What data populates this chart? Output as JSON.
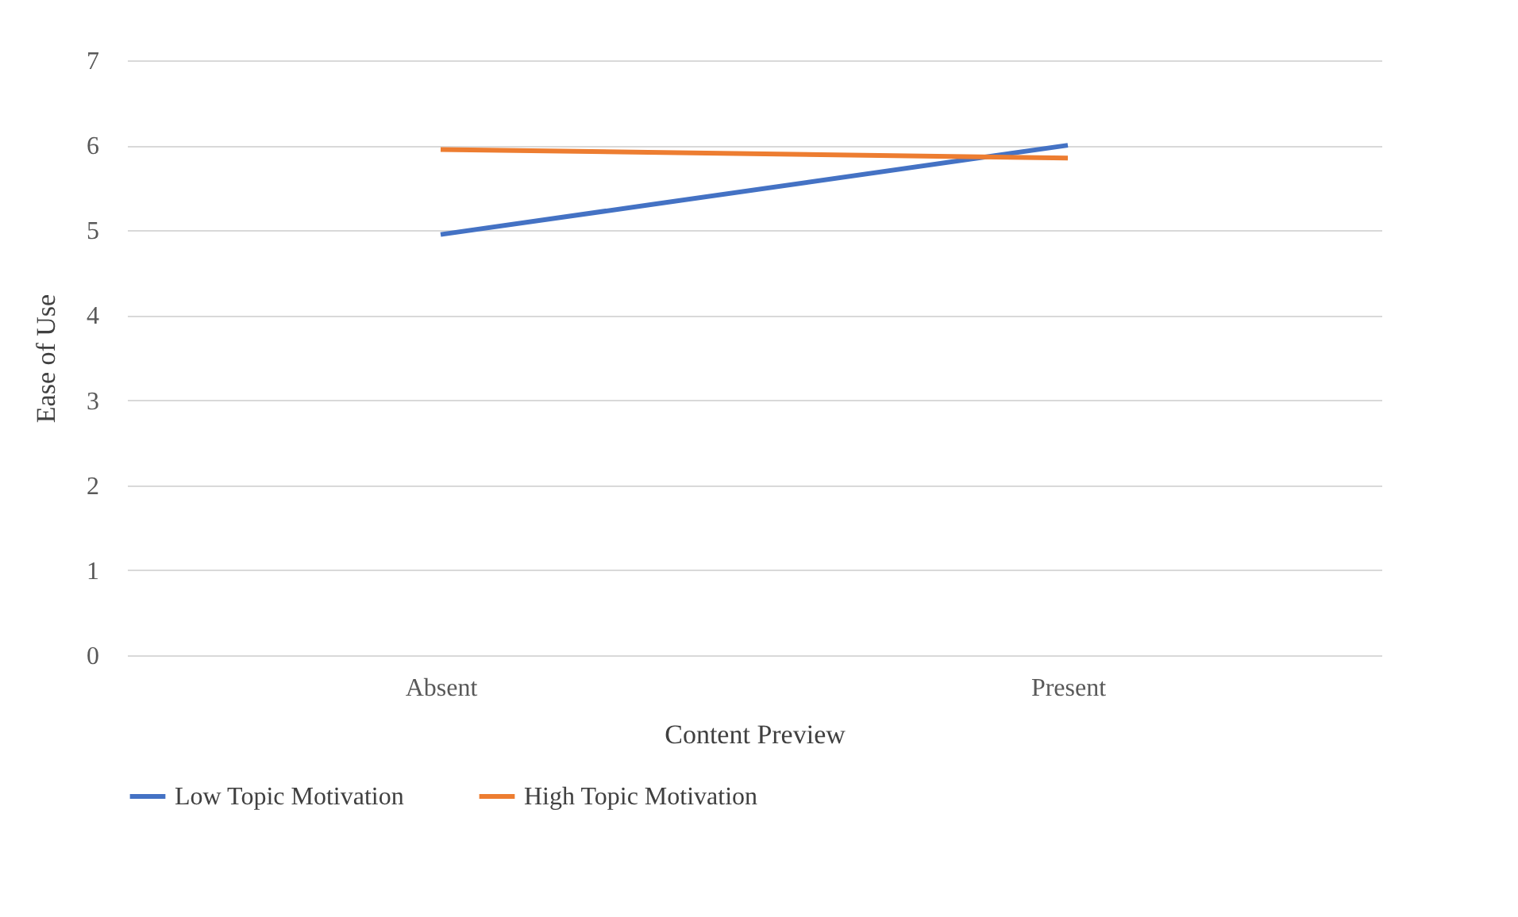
{
  "chart_data": {
    "type": "line",
    "xlabel": "Content Preview",
    "ylabel": "Ease of Use",
    "categories": [
      "Absent",
      "Present"
    ],
    "series": [
      {
        "name": "Low Topic Motivation",
        "color": "#4472c4",
        "values": [
          4.95,
          6.0
        ]
      },
      {
        "name": "High Topic Motivation",
        "color": "#ed7d31",
        "values": [
          5.95,
          5.85
        ]
      }
    ],
    "ylim": [
      0,
      7
    ],
    "yticks": [
      0,
      1,
      2,
      3,
      4,
      5,
      6,
      7
    ],
    "grid": "y",
    "legend": "bottom",
    "marker": "none",
    "line_style": "solid"
  }
}
